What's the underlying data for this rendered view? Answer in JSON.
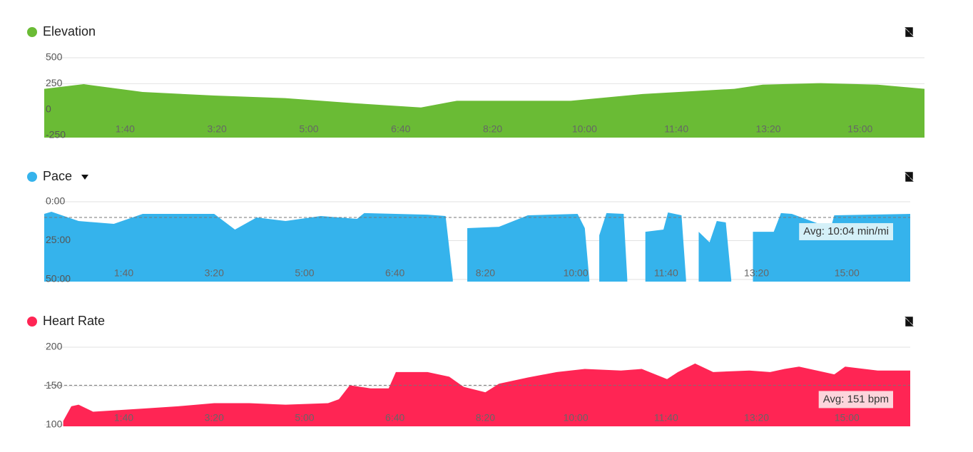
{
  "chart_data": [
    {
      "type": "area",
      "title": "Elevation",
      "color": "#6abb35",
      "x": [
        12,
        55,
        119,
        197,
        274,
        352,
        422,
        461,
        585,
        663,
        763,
        794,
        857,
        919,
        970
      ],
      "values": [
        200,
        245,
        170,
        135,
        110,
        60,
        20,
        85,
        85,
        150,
        200,
        240,
        255,
        240,
        200
      ],
      "xlim": [
        12,
        970
      ],
      "xticks": [
        {
          "value": 100,
          "label": "1:40"
        },
        {
          "value": 200,
          "label": "3:20"
        },
        {
          "value": 300,
          "label": "5:00"
        },
        {
          "value": 400,
          "label": "6:40"
        },
        {
          "value": 500,
          "label": "8:20"
        },
        {
          "value": 600,
          "label": "10:00"
        },
        {
          "value": 700,
          "label": "11:40"
        },
        {
          "value": 800,
          "label": "13:20"
        },
        {
          "value": 900,
          "label": "15:00"
        }
      ],
      "ylim": [
        -250,
        500
      ],
      "yticks": [
        -250,
        0,
        250,
        500
      ],
      "grid": true
    },
    {
      "type": "area",
      "title": "Pace",
      "color": "#35b3ec",
      "yreverse": true,
      "x": [
        12,
        20,
        50,
        89,
        121,
        160,
        200,
        223,
        247,
        279,
        318,
        358,
        366,
        436,
        456,
        464,
        472,
        480,
        515,
        547,
        602,
        610,
        615,
        620,
        626,
        634,
        653,
        657,
        665,
        677,
        697,
        702,
        717,
        722,
        729,
        736,
        748,
        756,
        766,
        772,
        784,
        796,
        819,
        827,
        839,
        882,
        886,
        970
      ],
      "values": [
        7.8,
        6.4,
        12.4,
        14.2,
        7.8,
        7.8,
        7.8,
        17.9,
        10.1,
        12.4,
        9.2,
        11,
        7.3,
        8.3,
        9.2,
        50,
        null,
        17,
        16.1,
        8.7,
        7.8,
        17,
        50,
        null,
        21.6,
        7.3,
        7.8,
        50,
        null,
        19.3,
        17.9,
        6.9,
        8.7,
        50,
        null,
        19.3,
        26.1,
        12.4,
        13.3,
        50,
        null,
        19.3,
        19.3,
        7.3,
        7.8,
        17,
        8.7,
        7.8
      ],
      "xlim": [
        12,
        970
      ],
      "xticks": [
        {
          "value": 100,
          "label": "1:40"
        },
        {
          "value": 200,
          "label": "3:20"
        },
        {
          "value": 300,
          "label": "5:00"
        },
        {
          "value": 400,
          "label": "6:40"
        },
        {
          "value": 500,
          "label": "8:20"
        },
        {
          "value": 600,
          "label": "10:00"
        },
        {
          "value": 700,
          "label": "11:40"
        },
        {
          "value": 800,
          "label": "13:20"
        },
        {
          "value": 900,
          "label": "15:00"
        }
      ],
      "ylim": [
        0,
        50
      ],
      "yticks": [
        {
          "value": 0,
          "label": "0:00"
        },
        {
          "value": 25,
          "label": "25:00"
        },
        {
          "value": 50,
          "label": "50:00"
        }
      ],
      "grid": true,
      "avg": {
        "value": 10.07,
        "label": "Avg: 10:04 min/mi"
      }
    },
    {
      "type": "area",
      "title": "Heart Rate",
      "color": "#ff2554",
      "x": [
        33,
        42,
        50,
        66,
        121,
        160,
        200,
        239,
        279,
        326,
        338,
        350,
        373,
        393,
        401,
        436,
        460,
        476,
        500,
        515,
        547,
        579,
        610,
        650,
        673,
        701,
        713,
        732,
        752,
        792,
        815,
        831,
        847,
        886,
        898,
        934,
        970
      ],
      "values": [
        105,
        124,
        126,
        117,
        121,
        124,
        128,
        128,
        126,
        128,
        133,
        151,
        147,
        147,
        168,
        168,
        162,
        149,
        142,
        153,
        161,
        168,
        172,
        170,
        172,
        159,
        168,
        179,
        168,
        170,
        168,
        172,
        175,
        165,
        175,
        170,
        170
      ],
      "xlim": [
        12,
        970
      ],
      "xticks": [
        {
          "value": 100,
          "label": "1:40"
        },
        {
          "value": 200,
          "label": "3:20"
        },
        {
          "value": 300,
          "label": "5:00"
        },
        {
          "value": 400,
          "label": "6:40"
        },
        {
          "value": 500,
          "label": "8:20"
        },
        {
          "value": 600,
          "label": "10:00"
        },
        {
          "value": 700,
          "label": "11:40"
        },
        {
          "value": 800,
          "label": "13:20"
        },
        {
          "value": 900,
          "label": "15:00"
        }
      ],
      "ylim": [
        100,
        200
      ],
      "yticks": [
        100,
        150,
        200
      ],
      "grid": true,
      "avg": {
        "value": 151,
        "label": "Avg: 151 bpm"
      }
    }
  ]
}
